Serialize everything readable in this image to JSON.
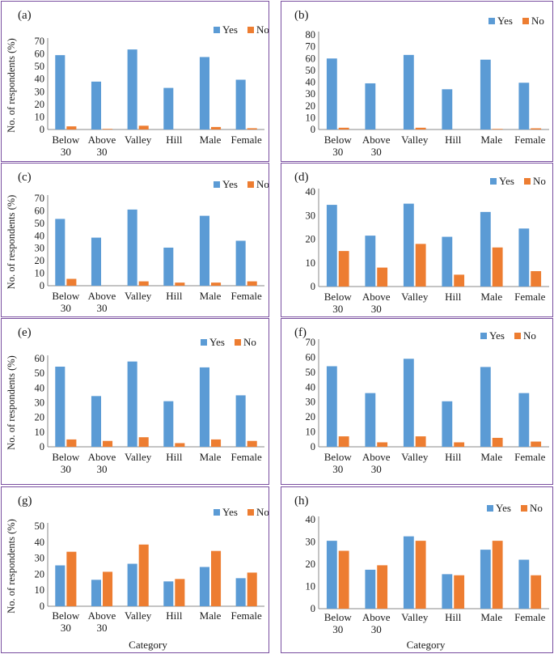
{
  "colors": {
    "yes": "#5b9bd5",
    "no": "#ed7d31",
    "border": "#7a4fa0",
    "axis": "#888888"
  },
  "ylabel": "No. of respondents (%)",
  "xlabel": "Category",
  "chart_data": [
    {
      "type": "bar",
      "title": "(a)",
      "categories": [
        "Below 30",
        "Above 30",
        "Valley",
        "Hill",
        "Male",
        "Female"
      ],
      "series": [
        {
          "name": "Yes",
          "values": [
            59,
            38,
            63.5,
            33,
            57.5,
            39.5
          ]
        },
        {
          "name": "No",
          "values": [
            2.5,
            0.5,
            3,
            0,
            2,
            1
          ]
        }
      ],
      "ylim": [
        0,
        70
      ],
      "ystep": 10,
      "ylabel": "No. of respondents (%)",
      "xlabel": "",
      "legend": "top-right"
    },
    {
      "type": "bar",
      "title": "(b)",
      "categories": [
        "Below 30",
        "Above 30",
        "Valley",
        "Hill",
        "Male",
        "Female"
      ],
      "series": [
        {
          "name": "Yes",
          "values": [
            60,
            39,
            63,
            34,
            59,
            39.5
          ]
        },
        {
          "name": "No",
          "values": [
            1.5,
            0,
            1.5,
            0,
            0.5,
            1
          ]
        }
      ],
      "ylim": [
        0,
        80
      ],
      "ystep": 10,
      "ylabel": "",
      "xlabel": "",
      "legend": "top-right"
    },
    {
      "type": "bar",
      "title": "(c)",
      "categories": [
        "Below 30",
        "Above 30",
        "Valley",
        "Hill",
        "Male",
        "Female"
      ],
      "series": [
        {
          "name": "Yes",
          "values": [
            53.5,
            38.5,
            61,
            30.5,
            56,
            36
          ]
        },
        {
          "name": "No",
          "values": [
            5.5,
            0,
            3.5,
            2.5,
            2.5,
            3.5
          ]
        }
      ],
      "ylim": [
        0,
        70
      ],
      "ystep": 10,
      "ylabel": "No. of respondents (%)",
      "xlabel": "",
      "legend": "top-right"
    },
    {
      "type": "bar",
      "title": "(d)",
      "categories": [
        "Below 30",
        "Above 30",
        "Valley",
        "Hill",
        "Male",
        "Female"
      ],
      "series": [
        {
          "name": "Yes",
          "values": [
            34.5,
            21.5,
            35,
            21,
            31.5,
            24.5
          ]
        },
        {
          "name": "No",
          "values": [
            15,
            8,
            18,
            5,
            16.5,
            6.5
          ]
        }
      ],
      "ylim": [
        0,
        40
      ],
      "ystep": 10,
      "ylabel": "",
      "xlabel": "",
      "legend": "top-right"
    },
    {
      "type": "bar",
      "title": "(e)",
      "categories": [
        "Below 30",
        "Above 30",
        "Valley",
        "Hill",
        "Male",
        "Female"
      ],
      "series": [
        {
          "name": "Yes",
          "values": [
            54.5,
            34.5,
            58,
            31,
            54,
            35
          ]
        },
        {
          "name": "No",
          "values": [
            5,
            4,
            6.5,
            2.5,
            5,
            4
          ]
        }
      ],
      "ylim": [
        0,
        60
      ],
      "ystep": 10,
      "ylabel": "No. of respondents (%)",
      "xlabel": "",
      "legend": "top-right"
    },
    {
      "type": "bar",
      "title": "(f)",
      "categories": [
        "Below 30",
        "Above 30",
        "Valley",
        "Hill",
        "Male",
        "Female"
      ],
      "series": [
        {
          "name": "Yes",
          "values": [
            54,
            36,
            59,
            30.5,
            53.5,
            36
          ]
        },
        {
          "name": "No",
          "values": [
            7,
            3,
            7,
            3,
            6,
            3.5
          ]
        }
      ],
      "ylim": [
        0,
        70
      ],
      "ystep": 10,
      "ylabel": "",
      "xlabel": "",
      "legend": "top-right"
    },
    {
      "type": "bar",
      "title": "(g)",
      "categories": [
        "Below 30",
        "Above 30",
        "Valley",
        "Hill",
        "Male",
        "Female"
      ],
      "series": [
        {
          "name": "Yes",
          "values": [
            25.5,
            16.5,
            26.5,
            15.5,
            24.5,
            17.5
          ]
        },
        {
          "name": "No",
          "values": [
            34,
            21.5,
            38.5,
            17,
            34.5,
            21
          ]
        }
      ],
      "ylim": [
        0,
        50
      ],
      "ystep": 10,
      "ylabel": "No. of respondents (%)",
      "xlabel": "Category",
      "legend": "top-right"
    },
    {
      "type": "bar",
      "title": "(h)",
      "categories": [
        "Below 30",
        "Above 30",
        "Valley",
        "Hill",
        "Male",
        "Female"
      ],
      "series": [
        {
          "name": "Yes",
          "values": [
            30.5,
            17.5,
            32.5,
            15.5,
            26.5,
            22
          ]
        },
        {
          "name": "No",
          "values": [
            26,
            19.5,
            30.5,
            15,
            30.5,
            15
          ]
        }
      ],
      "ylim": [
        0,
        40
      ],
      "ystep": 10,
      "ylabel": "",
      "xlabel": "Category",
      "legend": "top-right"
    }
  ]
}
